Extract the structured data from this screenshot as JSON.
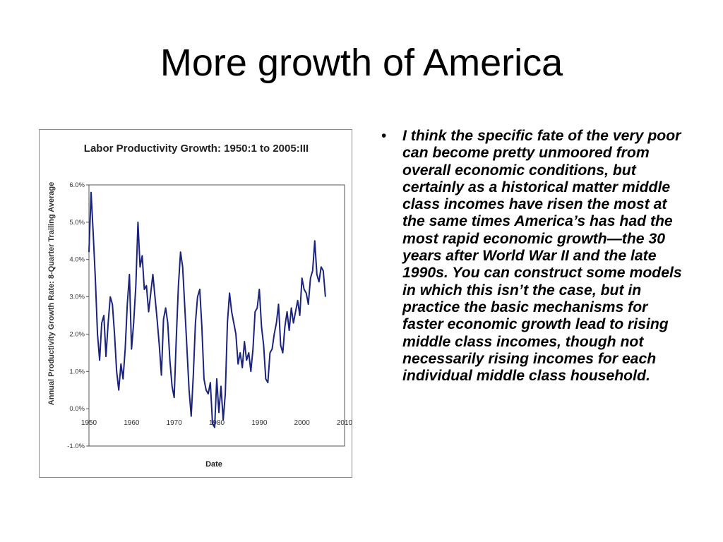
{
  "slide": {
    "title": "More growth of America",
    "bullet_symbol": "•",
    "bullet_text": "I think the specific fate of the very poor can become pretty unmoored from overall economic conditions, but certainly as a historical matter middle class incomes have risen the most at the same times America’s has had the most rapid economic growth—the 30 years after World War II and the late 1990s. You can construct some models in which this isn’t the case, but in practice the basic mechanisms for faster economic growth lead to rising middle class incomes, though not necessarily rising incomes for each individual middle class household."
  },
  "chart_data": {
    "type": "line",
    "title": "Labor Productivity Growth: 1950:1 to 2005:III",
    "xlabel": "Date",
    "ylabel": "Annual Productivity Growth Rate: 8-Quarter Trailing Average",
    "xlim": [
      1950,
      2010
    ],
    "ylim": [
      -1.0,
      6.0
    ],
    "x_ticks": [
      1950,
      1960,
      1970,
      1980,
      1990,
      2000,
      2010
    ],
    "x_tick_labels": [
      "1950",
      "1960",
      "1970",
      "1980",
      "1990",
      "2000",
      "2010"
    ],
    "y_ticks": [
      -1,
      0,
      1,
      2,
      3,
      4,
      5,
      6
    ],
    "y_tick_labels": [
      "-1.0%",
      "0.0%",
      "1.0%",
      "2.0%",
      "3.0%",
      "4.0%",
      "5.0%",
      "6.0%"
    ],
    "grid": false,
    "legend": "none",
    "line_color": "#1a237e",
    "series": [
      {
        "x": [
          1950.0,
          1950.5,
          1951.0,
          1951.5,
          1952.0,
          1952.5,
          1953.0,
          1953.5,
          1954.0,
          1954.5,
          1955.0,
          1955.5,
          1956.0,
          1956.5,
          1957.0,
          1957.5,
          1958.0,
          1958.5,
          1959.0,
          1959.5,
          1960.0,
          1960.5,
          1961.0,
          1961.5,
          1962.0,
          1962.5,
          1963.0,
          1963.5,
          1964.0,
          1964.5,
          1965.0,
          1965.5,
          1966.0,
          1966.5,
          1967.0,
          1967.5,
          1968.0,
          1968.5,
          1969.0,
          1969.5,
          1970.0,
          1970.5,
          1971.0,
          1971.5,
          1972.0,
          1972.5,
          1973.0,
          1973.5,
          1974.0,
          1974.5,
          1975.0,
          1975.5,
          1976.0,
          1976.5,
          1977.0,
          1977.5,
          1978.0,
          1978.5,
          1979.0,
          1979.5,
          1980.0,
          1980.5,
          1981.0,
          1981.5,
          1982.0,
          1982.5,
          1983.0,
          1983.5,
          1984.0,
          1984.5,
          1985.0,
          1985.5,
          1986.0,
          1986.5,
          1987.0,
          1987.5,
          1988.0,
          1988.5,
          1989.0,
          1989.5,
          1990.0,
          1990.5,
          1991.0,
          1991.5,
          1992.0,
          1992.5,
          1993.0,
          1993.5,
          1994.0,
          1994.5,
          1995.0,
          1995.5,
          1996.0,
          1996.5,
          1997.0,
          1997.5,
          1998.0,
          1998.5,
          1999.0,
          1999.5,
          2000.0,
          2000.5,
          2001.0,
          2001.5,
          2002.0,
          2002.5,
          2003.0,
          2003.5,
          2004.0,
          2004.5,
          2005.0,
          2005.5
        ],
        "values": [
          4.2,
          5.8,
          4.7,
          3.5,
          2.0,
          1.3,
          2.3,
          2.5,
          1.4,
          2.3,
          3.0,
          2.8,
          2.0,
          1.0,
          0.5,
          1.2,
          0.8,
          1.6,
          2.8,
          3.6,
          1.6,
          2.3,
          3.3,
          5.0,
          3.8,
          4.1,
          3.2,
          3.3,
          2.6,
          3.1,
          3.6,
          3.0,
          2.4,
          1.7,
          0.9,
          2.4,
          2.7,
          2.3,
          1.3,
          0.6,
          0.3,
          1.9,
          3.3,
          4.2,
          3.8,
          2.7,
          1.6,
          0.5,
          -0.2,
          0.9,
          2.3,
          3.0,
          3.2,
          2.2,
          0.8,
          0.5,
          0.4,
          0.7,
          -0.4,
          -0.5,
          0.8,
          -0.1,
          0.6,
          -0.3,
          0.4,
          2.3,
          3.1,
          2.6,
          2.3,
          2.0,
          1.2,
          1.5,
          1.1,
          1.8,
          1.3,
          1.5,
          1.0,
          1.6,
          2.6,
          2.7,
          3.2,
          2.2,
          1.7,
          0.8,
          0.7,
          1.5,
          1.6,
          2.0,
          2.3,
          2.8,
          1.7,
          1.5,
          2.2,
          2.6,
          2.1,
          2.7,
          2.3,
          2.6,
          2.9,
          2.5,
          3.5,
          3.2,
          3.1,
          2.8,
          3.5,
          3.7,
          4.5,
          3.6,
          3.4,
          3.8,
          3.7,
          3.0
        ]
      }
    ]
  }
}
